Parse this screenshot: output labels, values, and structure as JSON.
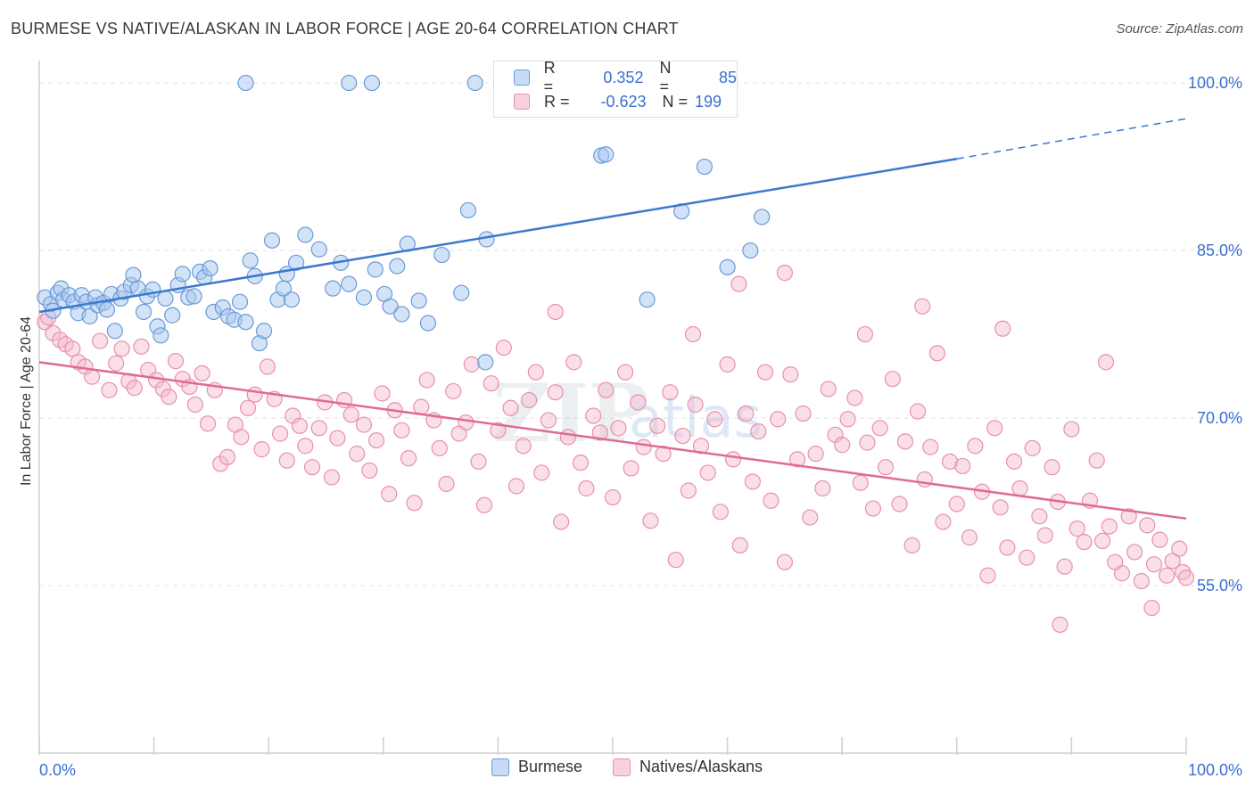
{
  "header": {
    "title": "BURMESE VS NATIVE/ALASKAN IN LABOR FORCE | AGE 20-64 CORRELATION CHART",
    "source": "Source: ZipAtlas.com"
  },
  "legend_stats": {
    "burmese": {
      "r_label": "R =",
      "r_value": "0.352",
      "n_label": "N =",
      "n_value": "85"
    },
    "natives": {
      "r_label": "R =",
      "r_value": "-0.623",
      "n_label": "N =",
      "n_value": "199"
    }
  },
  "colors": {
    "burmese_fill": "#a8c8f0",
    "burmese_stroke": "#6b9ad8",
    "burmese_line": "#3a78d0",
    "natives_fill": "#f5b8cc",
    "natives_stroke": "#e890ae",
    "natives_line": "#e06a94",
    "tick_label": "#3a6fd0",
    "grid": "#e2e2e2"
  },
  "watermark": {
    "zip": "ZIP",
    "atlas": "atlas"
  },
  "chart_data": {
    "type": "scatter",
    "title": "BURMESE VS NATIVE/ALASKAN IN LABOR FORCE | AGE 20-64 CORRELATION CHART",
    "xlabel": "",
    "ylabel": "In Labor Force | Age 20-64",
    "xlim": [
      0,
      100
    ],
    "ylim": [
      40,
      102
    ],
    "x_tick_labels": [
      "0.0%",
      "100.0%"
    ],
    "y_ticks": [
      55,
      70,
      85,
      100
    ],
    "y_tick_labels": [
      "55.0%",
      "70.0%",
      "85.0%",
      "100.0%"
    ],
    "grid": "dashed horizontal",
    "legend_position": "bottom-center",
    "series": [
      {
        "name": "Burmese",
        "r": 0.352,
        "n": 85,
        "trend": {
          "x1": 0,
          "y1": 79.5,
          "x2": 80,
          "y2": 93.2,
          "dash_to_x": 100,
          "dash_to_y": 96.8
        },
        "points": [
          [
            0.5,
            80.8
          ],
          [
            1.0,
            80.2
          ],
          [
            1.2,
            79.6
          ],
          [
            1.6,
            81.2
          ],
          [
            1.9,
            81.6
          ],
          [
            2.1,
            80.6
          ],
          [
            2.6,
            81.0
          ],
          [
            3.0,
            80.4
          ],
          [
            3.4,
            79.4
          ],
          [
            3.7,
            81.0
          ],
          [
            4.1,
            80.4
          ],
          [
            4.4,
            79.1
          ],
          [
            4.9,
            80.8
          ],
          [
            5.1,
            80.1
          ],
          [
            5.6,
            80.3
          ],
          [
            5.9,
            79.7
          ],
          [
            6.3,
            81.1
          ],
          [
            6.6,
            77.8
          ],
          [
            7.1,
            80.7
          ],
          [
            7.4,
            81.3
          ],
          [
            8.0,
            81.9
          ],
          [
            8.2,
            82.8
          ],
          [
            8.6,
            81.6
          ],
          [
            9.1,
            79.5
          ],
          [
            9.4,
            80.9
          ],
          [
            9.9,
            81.5
          ],
          [
            10.3,
            78.2
          ],
          [
            10.6,
            77.4
          ],
          [
            11.0,
            80.7
          ],
          [
            11.6,
            79.2
          ],
          [
            12.1,
            81.9
          ],
          [
            12.5,
            82.9
          ],
          [
            13.0,
            80.8
          ],
          [
            13.5,
            80.9
          ],
          [
            14.0,
            83.1
          ],
          [
            14.4,
            82.6
          ],
          [
            14.9,
            83.4
          ],
          [
            15.2,
            79.5
          ],
          [
            16.0,
            79.9
          ],
          [
            16.5,
            79.1
          ],
          [
            17.0,
            78.8
          ],
          [
            17.5,
            80.4
          ],
          [
            18.0,
            78.6
          ],
          [
            18.4,
            84.1
          ],
          [
            18.8,
            82.7
          ],
          [
            19.2,
            76.7
          ],
          [
            19.6,
            77.8
          ],
          [
            20.3,
            85.9
          ],
          [
            20.8,
            80.6
          ],
          [
            21.3,
            81.6
          ],
          [
            21.6,
            82.9
          ],
          [
            22.0,
            80.6
          ],
          [
            22.4,
            83.9
          ],
          [
            23.2,
            86.4
          ],
          [
            24.4,
            85.1
          ],
          [
            25.6,
            81.6
          ],
          [
            26.3,
            83.9
          ],
          [
            27.0,
            82.0
          ],
          [
            28.3,
            80.8
          ],
          [
            29.3,
            83.3
          ],
          [
            30.1,
            81.1
          ],
          [
            30.6,
            80.0
          ],
          [
            31.2,
            83.6
          ],
          [
            31.6,
            79.3
          ],
          [
            32.1,
            85.6
          ],
          [
            33.1,
            80.5
          ],
          [
            33.9,
            78.5
          ],
          [
            35.1,
            84.6
          ],
          [
            36.8,
            81.2
          ],
          [
            37.4,
            88.6
          ],
          [
            38.9,
            75.0
          ],
          [
            39.0,
            86.0
          ],
          [
            49.0,
            93.5
          ],
          [
            49.4,
            93.6
          ],
          [
            53.0,
            80.6
          ],
          [
            56.0,
            88.5
          ],
          [
            58.0,
            92.5
          ],
          [
            60.0,
            83.5
          ],
          [
            62.0,
            85.0
          ],
          [
            63.0,
            88.0
          ],
          [
            18.0,
            100.0
          ],
          [
            27.0,
            100.0
          ],
          [
            29.0,
            100.0
          ],
          [
            38.0,
            100.0
          ],
          [
            47.0,
            100.0
          ]
        ]
      },
      {
        "name": "Natives/Alaskans",
        "r": -0.623,
        "n": 199,
        "trend": {
          "x1": 0,
          "y1": 75.0,
          "x2": 100,
          "y2": 61.0
        },
        "points": [
          [
            0.5,
            78.6
          ],
          [
            0.8,
            79.0
          ],
          [
            1.2,
            77.6
          ],
          [
            1.8,
            77.0
          ],
          [
            2.3,
            76.6
          ],
          [
            2.9,
            76.2
          ],
          [
            3.4,
            75.0
          ],
          [
            4.0,
            74.6
          ],
          [
            4.6,
            73.7
          ],
          [
            5.3,
            76.9
          ],
          [
            6.1,
            72.5
          ],
          [
            6.7,
            74.9
          ],
          [
            7.2,
            76.2
          ],
          [
            7.8,
            73.3
          ],
          [
            8.3,
            72.7
          ],
          [
            8.9,
            76.4
          ],
          [
            9.5,
            74.3
          ],
          [
            10.2,
            73.4
          ],
          [
            10.8,
            72.6
          ],
          [
            11.3,
            71.9
          ],
          [
            11.9,
            75.1
          ],
          [
            12.5,
            73.5
          ],
          [
            13.1,
            72.8
          ],
          [
            13.6,
            71.2
          ],
          [
            14.2,
            74.0
          ],
          [
            14.7,
            69.5
          ],
          [
            15.3,
            72.5
          ],
          [
            15.8,
            65.9
          ],
          [
            16.4,
            66.5
          ],
          [
            17.1,
            69.4
          ],
          [
            17.6,
            68.3
          ],
          [
            18.2,
            70.9
          ],
          [
            18.8,
            72.1
          ],
          [
            19.4,
            67.2
          ],
          [
            19.9,
            74.6
          ],
          [
            20.5,
            71.7
          ],
          [
            21.0,
            68.6
          ],
          [
            21.6,
            66.2
          ],
          [
            22.1,
            70.2
          ],
          [
            22.7,
            69.3
          ],
          [
            23.2,
            67.5
          ],
          [
            23.8,
            65.6
          ],
          [
            24.4,
            69.1
          ],
          [
            24.9,
            71.4
          ],
          [
            25.5,
            64.7
          ],
          [
            26.0,
            68.2
          ],
          [
            26.6,
            71.6
          ],
          [
            27.2,
            70.3
          ],
          [
            27.7,
            66.8
          ],
          [
            28.3,
            69.4
          ],
          [
            28.8,
            65.3
          ],
          [
            29.4,
            68.0
          ],
          [
            29.9,
            72.2
          ],
          [
            30.5,
            63.2
          ],
          [
            31.0,
            70.7
          ],
          [
            31.6,
            68.9
          ],
          [
            32.2,
            66.4
          ],
          [
            32.7,
            62.4
          ],
          [
            33.3,
            71.0
          ],
          [
            33.8,
            73.4
          ],
          [
            34.4,
            69.8
          ],
          [
            34.9,
            67.3
          ],
          [
            35.5,
            64.1
          ],
          [
            36.1,
            72.4
          ],
          [
            36.6,
            68.6
          ],
          [
            37.2,
            69.6
          ],
          [
            37.7,
            74.8
          ],
          [
            38.3,
            66.1
          ],
          [
            38.8,
            62.2
          ],
          [
            39.4,
            73.1
          ],
          [
            40.0,
            68.9
          ],
          [
            40.5,
            76.3
          ],
          [
            41.1,
            70.9
          ],
          [
            41.6,
            63.9
          ],
          [
            42.2,
            67.5
          ],
          [
            42.7,
            71.6
          ],
          [
            43.3,
            74.1
          ],
          [
            43.8,
            65.1
          ],
          [
            44.4,
            69.8
          ],
          [
            45.0,
            72.3
          ],
          [
            45.5,
            60.7
          ],
          [
            46.1,
            68.3
          ],
          [
            46.6,
            75.0
          ],
          [
            47.2,
            66.0
          ],
          [
            47.7,
            63.7
          ],
          [
            48.3,
            70.2
          ],
          [
            48.9,
            68.7
          ],
          [
            49.4,
            72.5
          ],
          [
            50.0,
            62.9
          ],
          [
            50.5,
            69.1
          ],
          [
            51.1,
            74.1
          ],
          [
            51.6,
            65.5
          ],
          [
            52.2,
            71.4
          ],
          [
            52.7,
            67.4
          ],
          [
            53.3,
            60.8
          ],
          [
            53.9,
            69.3
          ],
          [
            54.4,
            66.8
          ],
          [
            55.0,
            72.3
          ],
          [
            55.5,
            57.3
          ],
          [
            56.1,
            68.4
          ],
          [
            56.6,
            63.5
          ],
          [
            57.2,
            71.2
          ],
          [
            57.7,
            67.5
          ],
          [
            58.3,
            65.1
          ],
          [
            58.9,
            69.9
          ],
          [
            59.4,
            61.6
          ],
          [
            60.0,
            74.8
          ],
          [
            60.5,
            66.3
          ],
          [
            61.1,
            58.6
          ],
          [
            61.6,
            70.4
          ],
          [
            62.2,
            64.3
          ],
          [
            62.7,
            68.8
          ],
          [
            63.3,
            74.1
          ],
          [
            63.8,
            62.6
          ],
          [
            64.4,
            69.9
          ],
          [
            65.0,
            57.1
          ],
          [
            65.5,
            73.9
          ],
          [
            66.1,
            66.3
          ],
          [
            66.6,
            70.4
          ],
          [
            67.2,
            61.1
          ],
          [
            67.7,
            66.8
          ],
          [
            68.3,
            63.7
          ],
          [
            68.8,
            72.6
          ],
          [
            69.4,
            68.5
          ],
          [
            70.0,
            67.6
          ],
          [
            70.5,
            69.9
          ],
          [
            71.1,
            71.8
          ],
          [
            71.6,
            64.2
          ],
          [
            72.2,
            67.8
          ],
          [
            72.7,
            61.9
          ],
          [
            73.3,
            69.1
          ],
          [
            73.8,
            65.6
          ],
          [
            74.4,
            73.5
          ],
          [
            75.0,
            62.3
          ],
          [
            75.5,
            67.9
          ],
          [
            76.1,
            58.6
          ],
          [
            76.6,
            70.6
          ],
          [
            77.2,
            64.5
          ],
          [
            77.7,
            67.4
          ],
          [
            78.3,
            75.8
          ],
          [
            78.8,
            60.7
          ],
          [
            79.4,
            66.1
          ],
          [
            80.0,
            62.3
          ],
          [
            80.5,
            65.7
          ],
          [
            81.1,
            59.3
          ],
          [
            81.6,
            67.5
          ],
          [
            82.2,
            63.4
          ],
          [
            82.7,
            55.9
          ],
          [
            83.3,
            69.1
          ],
          [
            83.8,
            62.0
          ],
          [
            84.4,
            58.4
          ],
          [
            85.0,
            66.1
          ],
          [
            85.5,
            63.7
          ],
          [
            86.1,
            57.5
          ],
          [
            86.6,
            67.3
          ],
          [
            87.2,
            61.2
          ],
          [
            87.7,
            59.5
          ],
          [
            88.3,
            65.6
          ],
          [
            88.8,
            62.5
          ],
          [
            89.4,
            56.7
          ],
          [
            90.0,
            69.0
          ],
          [
            90.5,
            60.1
          ],
          [
            91.1,
            58.9
          ],
          [
            91.6,
            62.6
          ],
          [
            92.2,
            66.2
          ],
          [
            92.7,
            59.0
          ],
          [
            93.3,
            60.3
          ],
          [
            93.8,
            57.1
          ],
          [
            94.4,
            56.1
          ],
          [
            95.0,
            61.2
          ],
          [
            95.5,
            58.0
          ],
          [
            96.1,
            55.4
          ],
          [
            96.6,
            60.4
          ],
          [
            97.2,
            56.9
          ],
          [
            97.7,
            59.1
          ],
          [
            98.3,
            55.9
          ],
          [
            98.8,
            57.2
          ],
          [
            99.4,
            58.3
          ],
          [
            99.7,
            56.2
          ],
          [
            100.0,
            55.7
          ],
          [
            45.0,
            79.5
          ],
          [
            57.0,
            77.5
          ],
          [
            61.0,
            82.0
          ],
          [
            65.0,
            83.0
          ],
          [
            72.0,
            77.5
          ],
          [
            77.0,
            80.0
          ],
          [
            84.0,
            78.0
          ],
          [
            93.0,
            75.0
          ],
          [
            89.0,
            51.5
          ],
          [
            97.0,
            53.0
          ]
        ]
      }
    ]
  }
}
